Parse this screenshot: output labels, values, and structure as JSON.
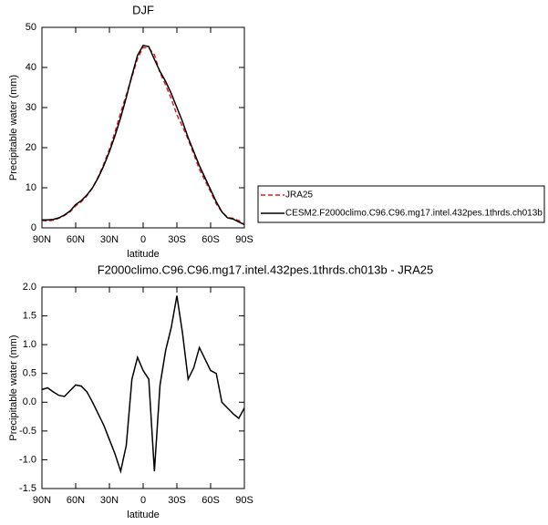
{
  "chart_data": [
    {
      "type": "line",
      "title": "DJF",
      "ylabel": "Precipitable water (mm)",
      "xlabel": "latitude",
      "x": [
        90,
        85,
        80,
        75,
        70,
        65,
        60,
        55,
        50,
        45,
        40,
        35,
        30,
        25,
        20,
        15,
        10,
        5,
        0,
        -5,
        -10,
        -15,
        -20,
        -25,
        -30,
        -35,
        -40,
        -45,
        -50,
        -55,
        -60,
        -65,
        -70,
        -75,
        -80,
        -85,
        -90
      ],
      "xlim": [
        90,
        -90
      ],
      "xticks": [
        {
          "value": 90,
          "label": "90N"
        },
        {
          "value": 60,
          "label": "60N"
        },
        {
          "value": 30,
          "label": "30N"
        },
        0,
        {
          "value": -30,
          "label": "30S"
        },
        {
          "value": -60,
          "label": "60S"
        },
        {
          "value": -90,
          "label": "90S"
        }
      ],
      "ylim": [
        0,
        50
      ],
      "yticks": [
        0,
        10,
        20,
        30,
        40,
        50
      ],
      "legend": "right",
      "series": [
        {
          "name": "JRA25",
          "color": "#e8191f",
          "style": "dashed",
          "values": [
            1.8,
            1.75,
            1.9,
            2.4,
            3.1,
            4.0,
            5.5,
            6.5,
            8.0,
            10.0,
            12.7,
            15.9,
            19.6,
            23.9,
            28.7,
            33.2,
            37.6,
            42.2,
            45.0,
            44.8,
            43.2,
            38.7,
            35.6,
            32.2,
            28.2,
            25.3,
            22.1,
            18.4,
            14.6,
            11.8,
            9.0,
            6.0,
            4.0,
            2.6,
            2.4,
            1.8,
            0.9
          ]
        },
        {
          "name": "CESM2.F2000climo.C96.C96.mg17.intel.432pes.1thrds.ch013b",
          "color": "#000000",
          "style": "solid",
          "values": [
            2.0,
            2.0,
            2.1,
            2.5,
            3.2,
            4.2,
            5.8,
            6.8,
            8.2,
            10.0,
            12.5,
            15.5,
            19.0,
            23.0,
            27.5,
            32.5,
            38.0,
            43.0,
            45.5,
            45.2,
            42.0,
            39.0,
            36.5,
            33.5,
            30.0,
            26.5,
            22.5,
            19.0,
            15.5,
            12.5,
            9.5,
            6.5,
            4.0,
            2.5,
            2.2,
            1.5,
            0.8
          ]
        }
      ]
    },
    {
      "type": "line",
      "title": "F2000climo.C96.C96.mg17.intel.432pes.1thrds.ch013b - JRA25",
      "ylabel": "Precipitable water (mm)",
      "xlabel": "latitude",
      "x": [
        90,
        85,
        80,
        75,
        70,
        65,
        60,
        55,
        50,
        45,
        40,
        35,
        30,
        25,
        20,
        15,
        10,
        5,
        0,
        -5,
        -10,
        -15,
        -20,
        -25,
        -30,
        -35,
        -40,
        -45,
        -50,
        -55,
        -60,
        -65,
        -70,
        -75,
        -80,
        -85,
        -90
      ],
      "xlim": [
        90,
        -90
      ],
      "xticks": [
        {
          "value": 90,
          "label": "90N"
        },
        {
          "value": 60,
          "label": "60N"
        },
        {
          "value": 30,
          "label": "30N"
        },
        0,
        {
          "value": -30,
          "label": "30S"
        },
        {
          "value": -60,
          "label": "60S"
        },
        {
          "value": -90,
          "label": "90S"
        }
      ],
      "ylim": [
        -1.5,
        2.0
      ],
      "yticks": [
        -1.5,
        {
          "value": -1.0,
          "label": "-1.0"
        },
        -0.5,
        {
          "value": 0,
          "label": "0.0"
        },
        0.5,
        {
          "value": 1.0,
          "label": "1.0"
        },
        1.5,
        {
          "value": 2.0,
          "label": "2.0"
        }
      ],
      "series": [
        {
          "color": "#000000",
          "style": "solid",
          "values": [
            0.22,
            0.25,
            0.18,
            0.12,
            0.1,
            0.2,
            0.3,
            0.28,
            0.18,
            0.0,
            -0.2,
            -0.4,
            -0.65,
            -0.9,
            -1.2,
            -0.75,
            0.4,
            0.78,
            0.55,
            0.4,
            -1.2,
            0.3,
            0.9,
            1.3,
            1.85,
            1.2,
            0.4,
            0.6,
            0.95,
            0.75,
            0.55,
            0.5,
            0.0,
            -0.1,
            -0.2,
            -0.28,
            -0.1
          ]
        }
      ]
    }
  ]
}
